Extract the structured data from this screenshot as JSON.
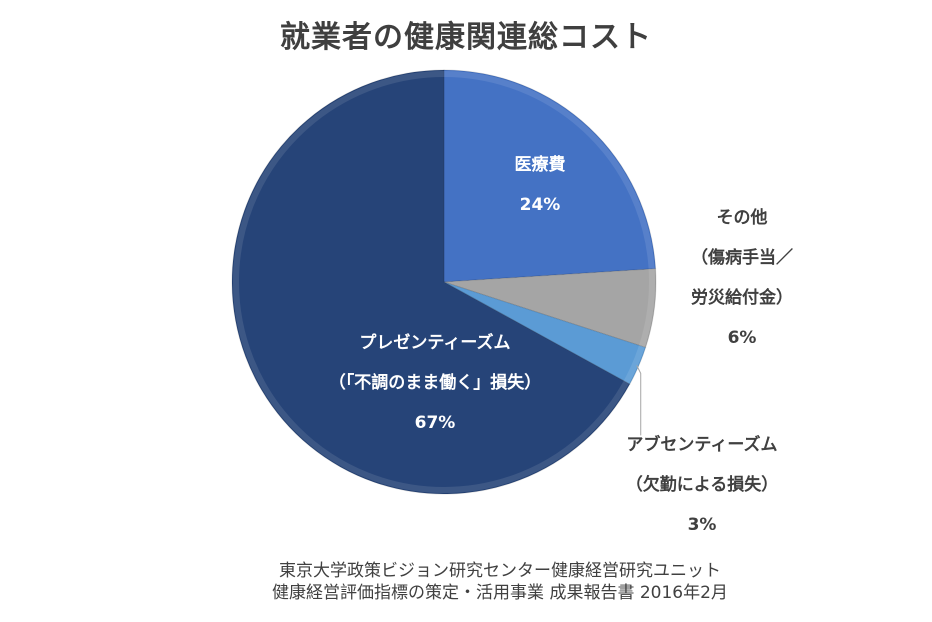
{
  "title": "就業者の健康関連総コスト",
  "chart_data": {
    "type": "pie",
    "title": "就業者の健康関連総コスト",
    "slices": [
      {
        "name": "医療費",
        "label_lines": [
          "医療費"
        ],
        "pct_label": "24%",
        "value": 24,
        "color": "#4472c4"
      },
      {
        "name": "その他（傷病手当／労災給付金）",
        "label_lines": [
          "その他",
          "（傷病手当／",
          "労災給付金）"
        ],
        "pct_label": "6%",
        "value": 6,
        "color": "#a5a5a5"
      },
      {
        "name": "アブセンティーズム（欠勤による損失）",
        "label_lines": [
          "アブセンティーズム",
          "（欠勤による損失）"
        ],
        "pct_label": "3%",
        "value": 3,
        "color": "#5b9bd5"
      },
      {
        "name": "プレゼンティーズム（「不調のまま働く」損失）",
        "label_lines": [
          "プレゼンティーズム",
          "（「不調のまま働く」損失）"
        ],
        "pct_label": "67%",
        "value": 67,
        "color": "#264478"
      }
    ]
  },
  "source": {
    "line1": "東京大学政策ビジョン研究センター健康経営研究ユニット",
    "line2": "健康経営評価指標の策定・活用事業 成果報告書 2016年2月"
  }
}
